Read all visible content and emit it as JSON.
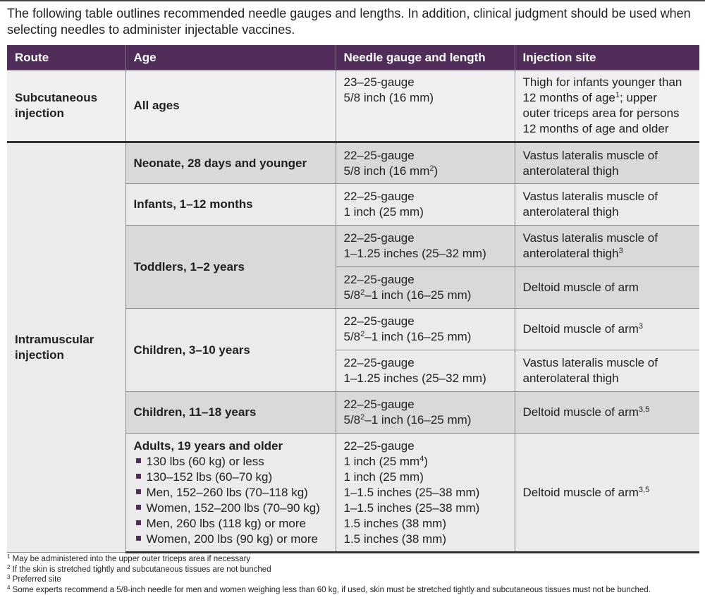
{
  "intro": "The following table outlines recommended needle gauges and lengths. In addition, clinical judgment should be used when selecting needles to administer injectable vaccines.",
  "header": {
    "route": "Route",
    "age": "Age",
    "needle": "Needle gauge and length",
    "site": "Injection site"
  },
  "colors": {
    "header_bg": "#512d5a",
    "row_dark": "#d9d9d9",
    "row_light": "#ebebeb",
    "subcutaneous_bg": "#f0f0f0"
  },
  "subcutaneous": {
    "route": "Subcutaneous injection",
    "age": "All ages",
    "needle": [
      {
        "t": "23–25-gauge"
      },
      {
        "t": "5/8 inch (16 mm)"
      }
    ],
    "site": [
      {
        "t": "Thigh for infants younger than"
      },
      {
        "t": "12 months of age",
        "sup": "1",
        "post": "; upper"
      },
      {
        "t": "outer triceps area for persons"
      },
      {
        "t": "12 months of age and older"
      }
    ]
  },
  "intramuscular": {
    "route": "Intramuscular injection",
    "groups": [
      {
        "age": "Neonate, 28 days and younger",
        "shade": "dark",
        "rows": [
          {
            "needle": [
              {
                "t": "22–25-gauge"
              },
              {
                "t": "5/8 inch (16 mm",
                "sup": "2",
                "post": ")"
              }
            ],
            "site": [
              {
                "t": "Vastus lateralis muscle of"
              },
              {
                "t": "anterolateral thigh"
              }
            ]
          }
        ]
      },
      {
        "age": "Infants, 1–12 months",
        "shade": "light",
        "rows": [
          {
            "needle": [
              {
                "t": "22–25-gauge"
              },
              {
                "t": "1 inch (25 mm)"
              }
            ],
            "site": [
              {
                "t": "Vastus lateralis muscle of"
              },
              {
                "t": "anterolateral thigh"
              }
            ]
          }
        ]
      },
      {
        "age": "Toddlers, 1–2 years",
        "shade": "dark",
        "rows": [
          {
            "needle": [
              {
                "t": "22–25-gauge"
              },
              {
                "t": "1–1.25 inches (25–32 mm)"
              }
            ],
            "site": [
              {
                "t": "Vastus lateralis muscle of"
              },
              {
                "t": "anterolateral thigh",
                "sup": "3"
              }
            ]
          },
          {
            "needle": [
              {
                "t": "22–25-gauge"
              },
              {
                "t": "5/8",
                "sup": "2",
                "post": "–1 inch (16–25 mm)"
              }
            ],
            "site": [
              {
                "t": "Deltoid muscle of arm"
              }
            ]
          }
        ]
      },
      {
        "age": "Children, 3–10 years",
        "shade": "light",
        "rows": [
          {
            "needle": [
              {
                "t": "22–25-gauge"
              },
              {
                "t": "5/8",
                "sup": "2",
                "post": "–1 inch (16–25 mm)"
              }
            ],
            "site": [
              {
                "t": "Deltoid muscle of arm",
                "sup": "3"
              }
            ]
          },
          {
            "needle": [
              {
                "t": "22–25-gauge"
              },
              {
                "t": "1–1.25 inches (25–32 mm)"
              }
            ],
            "site": [
              {
                "t": "Vastus lateralis muscle of"
              },
              {
                "t": "anterolateral thigh"
              }
            ]
          }
        ]
      },
      {
        "age": "Children, 11–18 years",
        "shade": "dark",
        "rows": [
          {
            "needle": [
              {
                "t": "22–25-gauge"
              },
              {
                "t": "5/8",
                "sup": "2",
                "post": "–1 inch (16–25 mm)"
              }
            ],
            "site": [
              {
                "t": "Deltoid muscle of arm",
                "sup": "3,5"
              }
            ]
          }
        ]
      }
    ],
    "adults": {
      "age": "Adults, 19 years and older",
      "bullets": [
        "130 lbs (60 kg) or less",
        "130–152 lbs (60–70 kg)",
        "Men, 152–260 lbs (70–118 kg)",
        "Women, 152–200 lbs (70–90 kg)",
        "Men, 260 lbs (118 kg) or more",
        "Women, 200 lbs (90 kg) or more"
      ],
      "needle": [
        {
          "t": "22–25-gauge"
        },
        {
          "t": "1 inch (25 mm",
          "sup": "4",
          "post": ")"
        },
        {
          "t": "1 inch (25 mm)"
        },
        {
          "t": "1–1.5 inches (25–38 mm)"
        },
        {
          "t": "1–1.5 inches (25–38 mm)"
        },
        {
          "t": "1.5 inches (38 mm)"
        },
        {
          "t": "1.5 inches (38 mm)"
        }
      ],
      "site": [
        {
          "t": "Deltoid muscle of arm",
          "sup": "3,5"
        }
      ]
    }
  },
  "footnotes": [
    {
      "n": "1",
      "t": "May be administered into the upper outer triceps area if necessary"
    },
    {
      "n": "2",
      "t": "If the skin is stretched tightly and subcutaneous tissues are not bunched"
    },
    {
      "n": "3",
      "t": "Preferred site"
    },
    {
      "n": "4",
      "t": "Some experts recommend a 5/8-inch needle for men and women weighing less than 60 kg, if used, skin must be stretched tightly and subcutaneous tissues must not be bunched."
    }
  ]
}
